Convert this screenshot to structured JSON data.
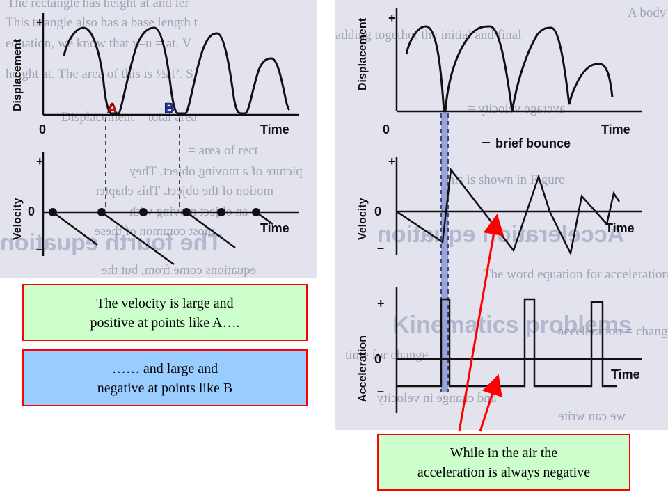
{
  "callouts": {
    "velocity_large_positive": {
      "line1": "The velocity is large and",
      "line2": "positive at points like  A…."
    },
    "velocity_large_negative": {
      "line1": "……   and   large  and",
      "line2": "negative at points like B"
    },
    "acceleration_negative": {
      "line1": "While in the air the",
      "line2": "acceleration is always negative"
    }
  },
  "left_figure": {
    "displacement_label": "Displacement",
    "velocity_label": "Velocity",
    "plus": "+",
    "minus": "–",
    "zero": "0",
    "time": "Time",
    "point_a": "A",
    "point_b": "B"
  },
  "right_figure": {
    "displacement_label": "Displacement",
    "velocity_label": "Velocity",
    "acceleration_label": "Acceleration",
    "plus": "+",
    "minus": "–",
    "zero": "0",
    "time": "Time",
    "bounce_label": "brief bounce"
  },
  "background_text": {
    "left": [
      "The rectangle has height at and ler",
      "This triangle also has a base length t",
      "equation, we know that v–u = at. V",
      "height at. The area of this is ½at². S",
      "Displacement = total area",
      "= area of rect",
      "picture of a moving object. They",
      "motion of the object. This chapter",
      "an object moving with",
      "most common of these",
      "equations come from, but the",
      "The fourth equation"
    ],
    "right": [
      "A body has a constant acceleration",
      "adding together the initial and final",
      "average velocity =",
      "This is shown in Figure",
      "Acceleration equation",
      "The word equation for acceleration is",
      "acceleration = change in velocity",
      "Kinematics problems",
      "time for change",
      "and change in velocity",
      "we can write"
    ]
  },
  "colors": {
    "callout_border": "#ff0000",
    "green_fill": "#ccffcc",
    "blue_fill": "#99ccff",
    "panel_bg": "#e3e3ee",
    "point_a": "#ff0000",
    "point_b": "#2233cc",
    "bounce_band": "#9aa3d6",
    "arrow": "#ff0000"
  }
}
